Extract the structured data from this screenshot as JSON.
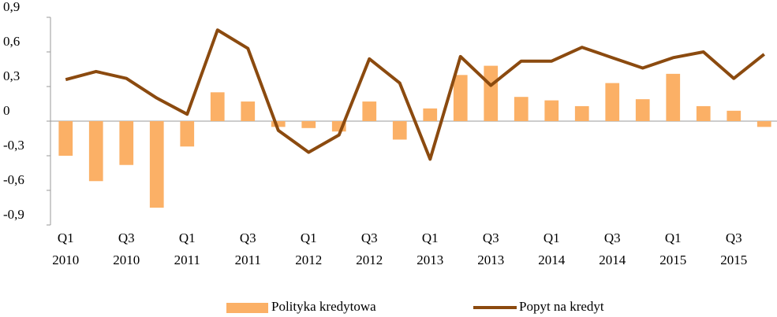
{
  "chart_data": {
    "type": "combo",
    "categories": [
      "Q1 2010",
      null,
      "Q3 2010",
      null,
      "Q1 2011",
      null,
      "Q3 2011",
      null,
      "Q1 2012",
      null,
      "Q3 2012",
      null,
      "Q1 2013",
      null,
      "Q3 2013",
      null,
      "Q1 2014",
      null,
      "Q3 2014",
      null,
      "Q1 2015",
      null,
      "Q3 2015",
      null
    ],
    "series": [
      {
        "name": "Polityka kredytowa",
        "type": "bar",
        "color": "#fbb066",
        "values": [
          -0.3,
          -0.52,
          -0.38,
          -0.75,
          -0.22,
          0.25,
          0.17,
          -0.05,
          -0.06,
          -0.09,
          0.17,
          -0.16,
          0.11,
          0.4,
          0.48,
          0.21,
          0.18,
          0.13,
          0.33,
          0.19,
          0.41,
          0.13,
          0.09,
          -0.05
        ]
      },
      {
        "name": "Popyt na kredyt",
        "type": "line",
        "color": "#8b4a0f",
        "values": [
          0.36,
          0.43,
          0.37,
          0.2,
          0.06,
          0.79,
          0.63,
          -0.08,
          -0.27,
          -0.12,
          0.54,
          0.33,
          -0.33,
          0.56,
          0.31,
          0.52,
          0.52,
          0.64,
          0.55,
          0.46,
          0.55,
          0.6,
          0.37,
          0.58
        ]
      }
    ],
    "ylim": [
      -0.9,
      0.9
    ],
    "yticks": [
      {
        "value": 0.9,
        "label": "0,9"
      },
      {
        "value": 0.6,
        "label": "0,6"
      },
      {
        "value": 0.3,
        "label": "0,3"
      },
      0,
      {
        "value": -0.3,
        "label": "-0,3"
      },
      {
        "value": -0.6,
        "label": "-0,6"
      },
      {
        "value": -0.9,
        "label": "-0,9"
      }
    ],
    "legend": "bottom"
  }
}
